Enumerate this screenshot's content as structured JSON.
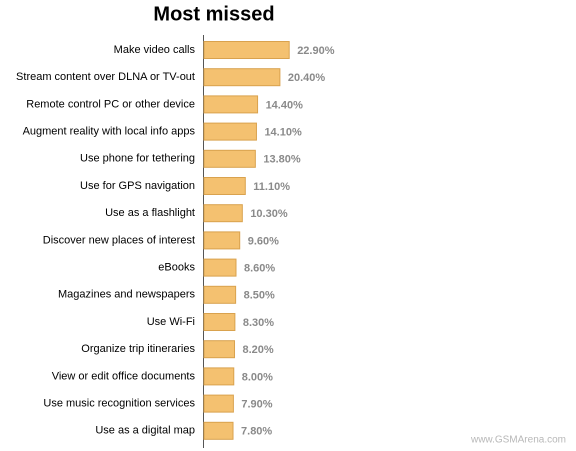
{
  "chart_data": {
    "type": "bar",
    "orientation": "horizontal",
    "title": "Most missed",
    "categories": [
      "Make video calls",
      "Stream content over DLNA or TV-out",
      "Remote control PC or other device",
      "Augment reality with local info apps",
      "Use phone for tethering",
      "Use for GPS navigation",
      "Use as a flashlight",
      "Discover new places of interest",
      "eBooks",
      "Magazines and newspapers",
      "Use Wi-Fi",
      "Organize trip itineraries",
      "View or edit office documents",
      "Use music recognition services",
      "Use as a digital map"
    ],
    "values": [
      22.9,
      20.4,
      14.4,
      14.1,
      13.8,
      11.1,
      10.3,
      9.6,
      8.6,
      8.5,
      8.3,
      8.2,
      8.0,
      7.9,
      7.8
    ],
    "value_labels": [
      "22.90%",
      "20.40%",
      "14.40%",
      "14.10%",
      "13.80%",
      "11.10%",
      "10.30%",
      "9.60%",
      "8.60%",
      "8.50%",
      "8.30%",
      "8.20%",
      "8.00%",
      "7.90%",
      "7.80%"
    ],
    "color": "#f4c170",
    "watermark": "www.GSMArena.com"
  }
}
